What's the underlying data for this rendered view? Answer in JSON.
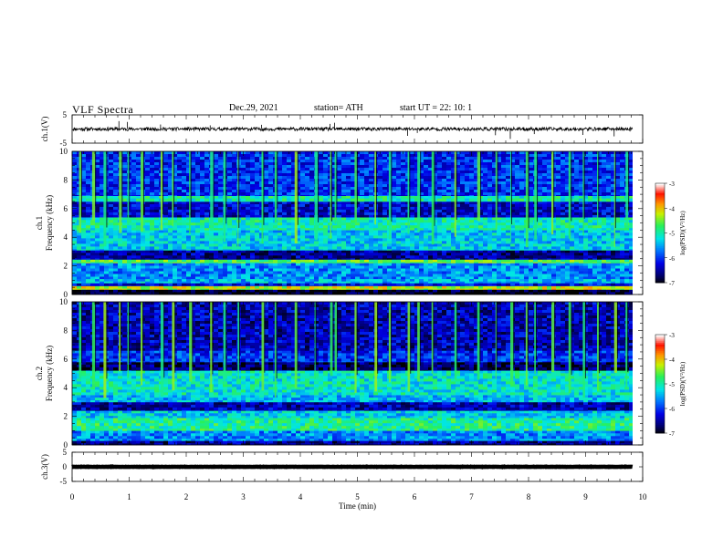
{
  "header": {
    "title": "VLF  Spectra",
    "date": "Dec.29, 2021",
    "station": "station= ATH",
    "start": "start  UT  =   22: 10: 1"
  },
  "chart_data": [
    {
      "id": "ch1-waveform",
      "type": "line",
      "ylabel": "ch.1(V)",
      "ylim": [
        -5,
        5
      ],
      "y_tick_labels": [
        "5",
        "-5"
      ],
      "xlim": [
        0,
        10
      ],
      "x_end_min": 9.82,
      "baseline": 0,
      "noise_amplitude": 0.6,
      "spikes": [
        {
          "x": 0.82,
          "y": 2.8
        },
        {
          "x": 0.97,
          "y": 2.5
        },
        {
          "x": 1.55,
          "y": 1.6
        },
        {
          "x": 3.32,
          "y": 1.5
        },
        {
          "x": 4.52,
          "y": 1.8
        },
        {
          "x": 4.6,
          "y": 2.2
        },
        {
          "x": 5.88,
          "y": -2.4
        },
        {
          "x": 7.42,
          "y": -2.2
        },
        {
          "x": 7.68,
          "y": -3.5
        },
        {
          "x": 8.1,
          "y": -1.8
        },
        {
          "x": 8.95,
          "y": -2.1
        },
        {
          "x": 9.5,
          "y": -2.6
        },
        {
          "x": 2.42,
          "y": 1.3
        },
        {
          "x": 6.05,
          "y": -1.4
        }
      ]
    },
    {
      "id": "ch1-spectrogram",
      "type": "heatmap",
      "channel_label": "ch.1",
      "ylabel": "Frequency  (kHz)",
      "ylim": [
        0,
        10
      ],
      "y_tick_labels": [
        "0",
        "2",
        "4",
        "6",
        "8",
        "10"
      ],
      "xlim": [
        0,
        10
      ],
      "x_end_min": 9.82,
      "colorbar": {
        "label": "log(PSD)(V²/Hz)",
        "range": [
          -7,
          -3
        ],
        "tick_labels": [
          "-3",
          "-4",
          "-5",
          "-6",
          "-7"
        ]
      },
      "bands_log_psd": [
        {
          "f0": 0.0,
          "f1": 0.35,
          "v": -6.9
        },
        {
          "f0": 0.35,
          "f1": 0.6,
          "v": -4.2
        },
        {
          "f0": 0.6,
          "f1": 0.8,
          "v": -6.2
        },
        {
          "f0": 0.8,
          "f1": 1.1,
          "v": -5.4
        },
        {
          "f0": 1.1,
          "f1": 2.2,
          "v": -5.6
        },
        {
          "f0": 2.2,
          "f1": 2.45,
          "v": -4.6
        },
        {
          "f0": 2.45,
          "f1": 3.1,
          "v": -6.5
        },
        {
          "f0": 3.1,
          "f1": 4.5,
          "v": -5.3
        },
        {
          "f0": 4.5,
          "f1": 5.4,
          "v": -5.0
        },
        {
          "f0": 5.4,
          "f1": 6.5,
          "v": -6.3
        },
        {
          "f0": 6.5,
          "f1": 6.9,
          "v": -5.0
        },
        {
          "f0": 6.9,
          "f1": 10.0,
          "v": -6.0
        }
      ],
      "impulses_min": [
        0.12,
        0.35,
        0.55,
        0.82,
        0.97,
        1.2,
        1.55,
        1.75,
        2.05,
        2.42,
        2.65,
        2.9,
        3.32,
        3.55,
        3.9,
        4.25,
        4.52,
        4.6,
        4.95,
        5.3,
        5.55,
        5.88,
        6.05,
        6.3,
        6.7,
        7.1,
        7.42,
        7.68,
        7.95,
        8.1,
        8.4,
        8.7,
        8.95,
        9.2,
        9.5,
        9.7
      ]
    },
    {
      "id": "ch2-spectrogram",
      "type": "heatmap",
      "channel_label": "ch.2",
      "ylabel": "Frequency  (kHz)",
      "ylim": [
        0,
        10
      ],
      "y_tick_labels": [
        "0",
        "2",
        "4",
        "6",
        "8",
        "10"
      ],
      "xlim": [
        0,
        10
      ],
      "x_end_min": 9.82,
      "colorbar": {
        "label": "log(PSD)(V²/Hz)",
        "range": [
          -7,
          -3
        ],
        "tick_labels": [
          "-3",
          "-4",
          "-5",
          "-6",
          "-7"
        ]
      },
      "bands_log_psd": [
        {
          "f0": 0.0,
          "f1": 0.3,
          "v": -6.5
        },
        {
          "f0": 0.3,
          "f1": 1.0,
          "v": -5.6
        },
        {
          "f0": 1.0,
          "f1": 1.9,
          "v": -4.9
        },
        {
          "f0": 1.9,
          "f1": 2.4,
          "v": -5.3
        },
        {
          "f0": 2.4,
          "f1": 3.0,
          "v": -6.4
        },
        {
          "f0": 3.0,
          "f1": 3.5,
          "v": -5.4
        },
        {
          "f0": 3.5,
          "f1": 5.2,
          "v": -5.1
        },
        {
          "f0": 5.2,
          "f1": 5.8,
          "v": -6.7
        },
        {
          "f0": 5.8,
          "f1": 6.6,
          "v": -6.0
        },
        {
          "f0": 6.6,
          "f1": 10.0,
          "v": -6.4
        }
      ],
      "impulses_min": [
        0.12,
        0.35,
        0.55,
        0.82,
        0.97,
        1.2,
        1.55,
        1.75,
        2.05,
        2.42,
        2.65,
        2.9,
        3.32,
        3.55,
        3.9,
        4.25,
        4.52,
        4.6,
        4.95,
        5.3,
        5.55,
        5.88,
        6.05,
        6.3,
        6.7,
        7.1,
        7.42,
        7.68,
        7.95,
        8.1,
        8.4,
        8.7,
        8.95,
        9.2,
        9.5,
        9.7
      ]
    },
    {
      "id": "ch3-waveform",
      "type": "line",
      "ylabel": "ch.3(V)",
      "ylim": [
        -5,
        5
      ],
      "y_tick_labels": [
        "5",
        "0",
        "-5"
      ],
      "xlim": [
        0,
        10
      ],
      "x_end_min": 9.82,
      "baseline": 0,
      "noise_amplitude": 0.05,
      "spikes": []
    }
  ],
  "x_axis": {
    "label": "Time  (min)",
    "tick_labels": [
      "0",
      "1",
      "2",
      "3",
      "4",
      "5",
      "6",
      "7",
      "8",
      "9",
      "10"
    ]
  },
  "colors": {
    "frame": "#000000",
    "trace": "#000000"
  }
}
